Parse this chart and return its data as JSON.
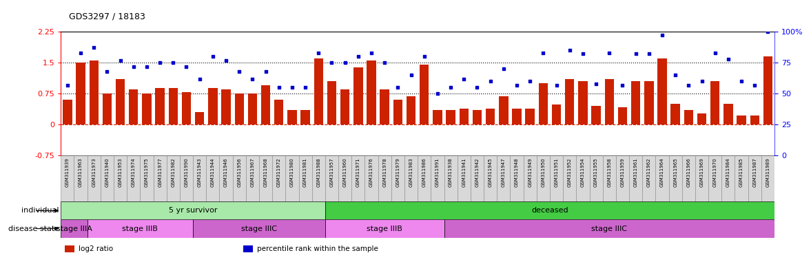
{
  "title": "GDS3297 / 18183",
  "samples": [
    "GSM311939",
    "GSM311963",
    "GSM311973",
    "GSM311940",
    "GSM311953",
    "GSM311974",
    "GSM311975",
    "GSM311977",
    "GSM311982",
    "GSM311990",
    "GSM311943",
    "GSM311944",
    "GSM311946",
    "GSM311956",
    "GSM311967",
    "GSM311968",
    "GSM311972",
    "GSM311980",
    "GSM311981",
    "GSM311988",
    "GSM311957",
    "GSM311960",
    "GSM311971",
    "GSM311976",
    "GSM311978",
    "GSM311979",
    "GSM311983",
    "GSM311986",
    "GSM311991",
    "GSM311938",
    "GSM311941",
    "GSM311942",
    "GSM311945",
    "GSM311947",
    "GSM311948",
    "GSM311949",
    "GSM311950",
    "GSM311951",
    "GSM311952",
    "GSM311954",
    "GSM311955",
    "GSM311958",
    "GSM311959",
    "GSM311961",
    "GSM311962",
    "GSM311964",
    "GSM311965",
    "GSM311966",
    "GSM311969",
    "GSM311970",
    "GSM311984",
    "GSM311985",
    "GSM311987",
    "GSM311989"
  ],
  "log2_ratio": [
    0.6,
    1.5,
    1.55,
    0.75,
    1.1,
    0.85,
    0.75,
    0.88,
    0.88,
    0.78,
    0.3,
    0.88,
    0.85,
    0.75,
    0.75,
    0.95,
    0.6,
    0.35,
    0.35,
    1.6,
    1.05,
    0.85,
    1.38,
    1.55,
    0.85,
    0.6,
    0.68,
    1.45,
    0.35,
    0.35,
    0.38,
    0.35,
    0.38,
    0.68,
    0.38,
    0.38,
    1.0,
    0.48,
    1.1,
    1.05,
    0.45,
    1.1,
    0.42,
    1.05,
    1.05,
    1.6,
    0.5,
    0.35,
    0.27,
    1.05,
    0.5,
    0.22,
    0.22,
    1.65
  ],
  "percentile": [
    57,
    83,
    87,
    68,
    77,
    72,
    72,
    75,
    75,
    72,
    62,
    80,
    77,
    68,
    62,
    68,
    55,
    55,
    55,
    83,
    75,
    75,
    80,
    83,
    75,
    55,
    65,
    80,
    50,
    55,
    62,
    55,
    60,
    70,
    57,
    60,
    83,
    57,
    85,
    82,
    58,
    83,
    57,
    82,
    82,
    97,
    65,
    57,
    60,
    83,
    78,
    60,
    57,
    100
  ],
  "individual_groups": [
    {
      "label": "5 yr survivor",
      "start": 0,
      "end": 20,
      "color": "#a8e8a8"
    },
    {
      "label": "deceased",
      "start": 20,
      "end": 54,
      "color": "#44cc44"
    }
  ],
  "disease_groups": [
    {
      "label": "stage IIIA",
      "start": 0,
      "end": 2,
      "color": "#cc66cc"
    },
    {
      "label": "stage IIIB",
      "start": 2,
      "end": 10,
      "color": "#ee88ee"
    },
    {
      "label": "stage IIIC",
      "start": 10,
      "end": 20,
      "color": "#cc66cc"
    },
    {
      "label": "stage IIIB",
      "start": 20,
      "end": 29,
      "color": "#ee88ee"
    },
    {
      "label": "stage IIIC",
      "start": 29,
      "end": 54,
      "color": "#cc66cc"
    }
  ],
  "bar_color": "#cc2200",
  "dot_color": "#0000cc",
  "ylim_left": [
    -0.75,
    2.25
  ],
  "ylim_right": [
    0,
    100
  ],
  "yticks_left": [
    -0.75,
    0,
    0.75,
    1.5,
    2.25
  ],
  "yticks_right": [
    0,
    25,
    50,
    75,
    100
  ],
  "hlines": [
    0.75,
    1.5
  ],
  "legend_items": [
    {
      "label": "log2 ratio",
      "color": "#cc2200"
    },
    {
      "label": "percentile rank within the sample",
      "color": "#0000cc"
    }
  ]
}
